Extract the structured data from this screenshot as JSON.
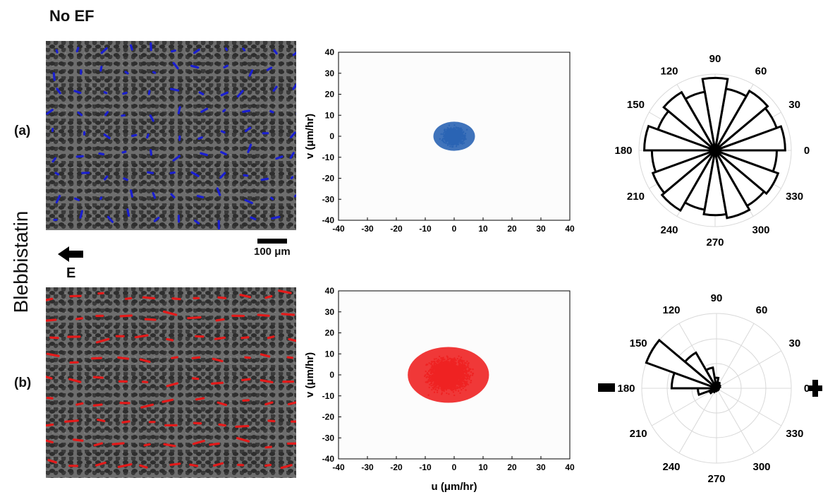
{
  "header": {
    "no_ef": "No EF"
  },
  "side": {
    "title": "Blebbistatin"
  },
  "panels": [
    {
      "label": "(a)",
      "arrow_color": "#1a1fd0"
    },
    {
      "label": "(b)",
      "arrow_color": "#e31a1a"
    }
  ],
  "scalebar": {
    "label": "100 μm"
  },
  "field": {
    "label": "E"
  },
  "chart_data": [
    {
      "type": "scatter",
      "panel": "a",
      "color": "#2a64b4",
      "xlim": [
        -40,
        40
      ],
      "ylim": [
        -40,
        40
      ],
      "xticks": [
        -40,
        -30,
        -20,
        -10,
        0,
        10,
        20,
        30,
        40
      ],
      "yticks": [
        40,
        30,
        20,
        10,
        0,
        -10,
        -20,
        -30,
        -40
      ],
      "xlabel": "",
      "ylabel": "v (μm/hr)",
      "cloud": {
        "center": [
          0,
          0
        ],
        "x_range": [
          -10,
          12
        ],
        "y_range": [
          -10,
          14
        ]
      }
    },
    {
      "type": "scatter",
      "panel": "b",
      "color": "#ee2222",
      "xlim": [
        -40,
        40
      ],
      "ylim": [
        -40,
        40
      ],
      "xticks": [
        -40,
        -30,
        -20,
        -10,
        0,
        10,
        20,
        30,
        40
      ],
      "yticks": [
        40,
        30,
        20,
        10,
        0,
        -10,
        -20,
        -30,
        -40
      ],
      "xlabel": "u (μm/hr)",
      "ylabel": "v (μm/hr)",
      "cloud": {
        "center": [
          -2,
          0
        ],
        "x_range": [
          -23,
          20
        ],
        "y_range": [
          -20,
          26
        ]
      }
    },
    {
      "type": "polar-histogram",
      "panel": "a",
      "angle_labels": [
        "90",
        "60",
        "30",
        "0",
        "330",
        "300",
        "270",
        "240",
        "210",
        "180",
        "150",
        "120"
      ],
      "bin_width_deg": 20,
      "radii": [
        0.92,
        0.86,
        0.9,
        0.82,
        0.95,
        0.78,
        0.88,
        0.8,
        0.93,
        0.83,
        0.87,
        0.91,
        0.79,
        0.85,
        0.9,
        0.84,
        0.88,
        0.81
      ]
    },
    {
      "type": "polar-histogram",
      "panel": "b",
      "angle_labels": [
        "90",
        "60",
        "30",
        "0",
        "330",
        "300",
        "270",
        "240",
        "210",
        "180",
        "150",
        "120"
      ],
      "bin_width_deg": 20,
      "radii": [
        0.03,
        0.05,
        0.06,
        0.08,
        0.14,
        0.28,
        0.55,
        1.0,
        0.6,
        0.25,
        0.1,
        0.06,
        0.04,
        0.03,
        0.03,
        0.02,
        0.02,
        0.03
      ]
    }
  ]
}
